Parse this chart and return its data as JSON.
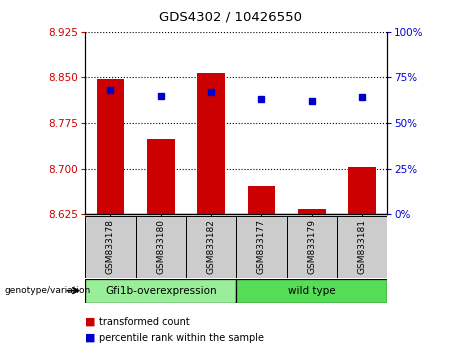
{
  "title": "GDS4302 / 10426550",
  "categories": [
    "GSM833178",
    "GSM833180",
    "GSM833182",
    "GSM833177",
    "GSM833179",
    "GSM833181"
  ],
  "bar_values": [
    8.848,
    8.748,
    8.857,
    8.671,
    8.634,
    8.702
  ],
  "percentile_values": [
    68,
    65,
    67,
    63,
    62,
    64
  ],
  "ylim_left": [
    8.625,
    8.925
  ],
  "ylim_right": [
    0,
    100
  ],
  "yticks_left": [
    8.625,
    8.7,
    8.775,
    8.85,
    8.925
  ],
  "yticks_right": [
    0,
    25,
    50,
    75,
    100
  ],
  "bar_color": "#cc0000",
  "dot_color": "#0000cc",
  "background_plot": "#ffffff",
  "tick_label_color_left": "#cc0000",
  "tick_label_color_right": "#0000cc",
  "group1_label": "Gfi1b-overexpression",
  "group2_label": "wild type",
  "group1_color": "#99ee99",
  "group2_color": "#55dd55",
  "group1_indices": [
    0,
    1,
    2
  ],
  "group2_indices": [
    3,
    4,
    5
  ],
  "genotype_label": "genotype/variation",
  "legend_bar_label": "transformed count",
  "legend_dot_label": "percentile rank within the sample",
  "bar_width": 0.55,
  "bottom_area_color": "#cccccc"
}
